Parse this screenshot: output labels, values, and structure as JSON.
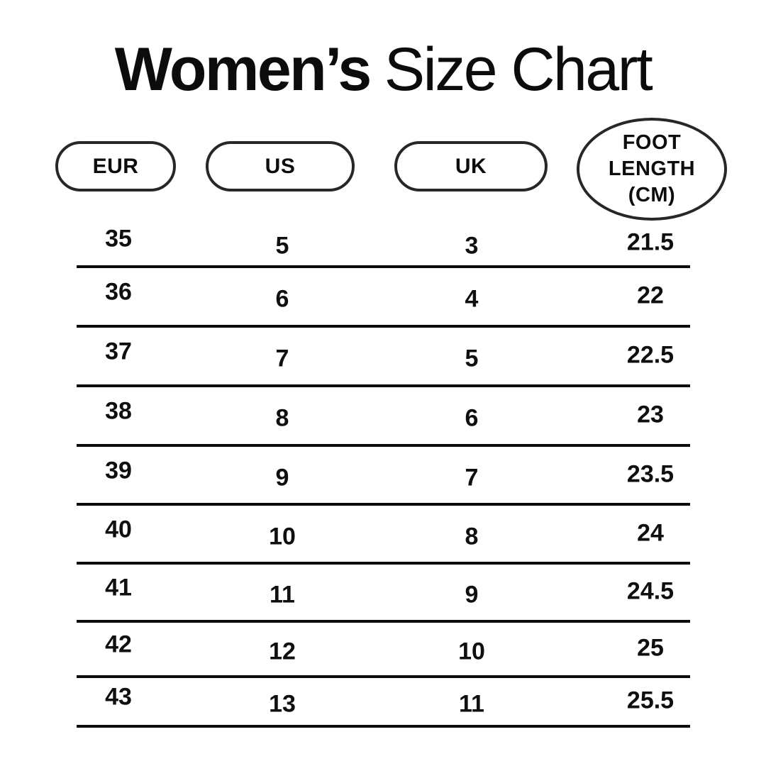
{
  "title": {
    "bold": "Women’s",
    "regular": "Size Chart"
  },
  "headers": {
    "eur": "EUR",
    "us": "US",
    "uk": "UK",
    "foot": "FOOT\nLENGTH\n(CM)"
  },
  "rows": [
    {
      "eur": "35",
      "us": "5",
      "uk": "3",
      "cm": "21.5"
    },
    {
      "eur": "36",
      "us": "6",
      "uk": "4",
      "cm": "22"
    },
    {
      "eur": "37",
      "us": "7",
      "uk": "5",
      "cm": "22.5"
    },
    {
      "eur": "38",
      "us": "8",
      "uk": "6",
      "cm": "23"
    },
    {
      "eur": "39",
      "us": "9",
      "uk": "7",
      "cm": "23.5"
    },
    {
      "eur": "40",
      "us": "10",
      "uk": "8",
      "cm": "24"
    },
    {
      "eur": "41",
      "us": "11",
      "uk": "9",
      "cm": "24.5"
    },
    {
      "eur": "42",
      "us": "12",
      "uk": "10",
      "cm": "25"
    },
    {
      "eur": "43",
      "us": "13",
      "uk": "11",
      "cm": "25.5"
    }
  ],
  "colors": {
    "background": "#ffffff",
    "text": "#0f0f0f",
    "pill_border": "#272727",
    "rule_line": "#0b0b0b"
  },
  "chart_data": {
    "type": "table",
    "title": "Women's Size Chart",
    "columns": [
      "EUR",
      "US",
      "UK",
      "FOOT LENGTH (CM)"
    ],
    "rows": [
      [
        35,
        5,
        3,
        21.5
      ],
      [
        36,
        6,
        4,
        22
      ],
      [
        37,
        7,
        5,
        22.5
      ],
      [
        38,
        8,
        6,
        23
      ],
      [
        39,
        9,
        7,
        23.5
      ],
      [
        40,
        10,
        8,
        24
      ],
      [
        41,
        11,
        9,
        24.5
      ],
      [
        42,
        12,
        10,
        25
      ],
      [
        43,
        13,
        11,
        25.5
      ]
    ]
  }
}
